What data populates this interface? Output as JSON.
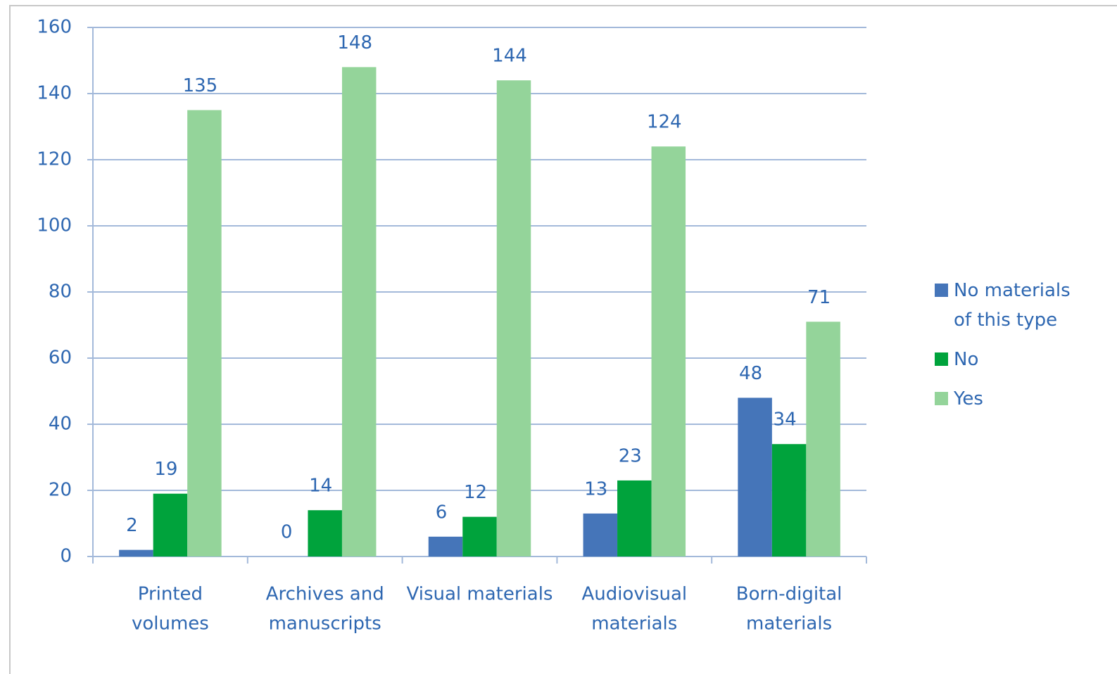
{
  "chart_data": {
    "type": "bar",
    "categories": [
      [
        "Printed",
        "volumes"
      ],
      [
        "Archives and",
        "manuscripts"
      ],
      [
        "Visual materials"
      ],
      [
        "Audiovisual",
        "materials"
      ],
      [
        "Born-digital",
        "materials"
      ]
    ],
    "series": [
      {
        "name": "No materials of this type",
        "color": "#4575b9",
        "values": [
          2,
          0,
          6,
          13,
          48
        ]
      },
      {
        "name": "No",
        "color": "#00a33c",
        "values": [
          19,
          14,
          12,
          23,
          34
        ]
      },
      {
        "name": "Yes",
        "color": "#94d49a",
        "values": [
          135,
          148,
          144,
          124,
          71
        ]
      }
    ],
    "ylim": [
      0,
      160
    ],
    "yticks": [
      0,
      20,
      40,
      60,
      80,
      100,
      120,
      140,
      160
    ],
    "grid": true,
    "legend": "right"
  }
}
